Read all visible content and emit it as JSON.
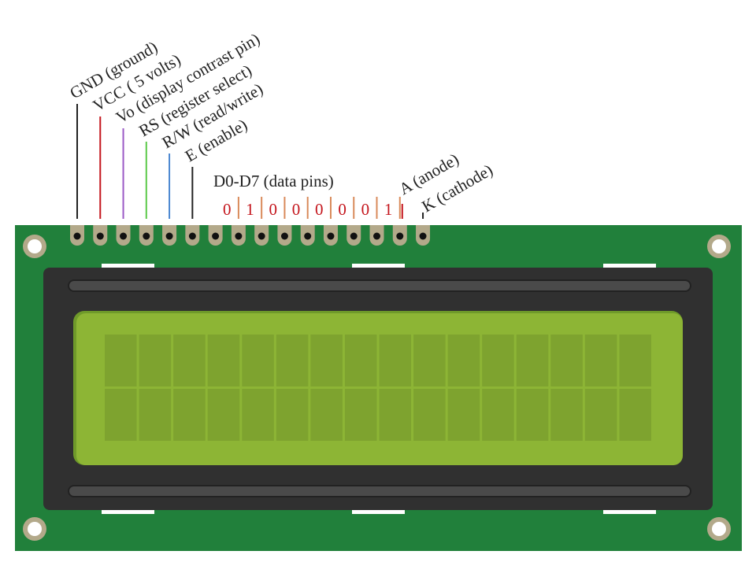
{
  "pin_labels": [
    {
      "text": "GND (ground)",
      "color": "#222222"
    },
    {
      "text": "VCC ( 5 volts)",
      "color": "#c4151c"
    },
    {
      "text": "Vo (display contrast pin)",
      "color": "#9b59c6"
    },
    {
      "text": "RS (register select)",
      "color": "#5cc94a"
    },
    {
      "text": "R/W (read/write)",
      "color": "#4a86d0"
    },
    {
      "text": "E (enable)",
      "color": "#222222"
    }
  ],
  "data_pins": {
    "label": "D0-D7 (data pins)",
    "bits": [
      "0",
      "1",
      "0",
      "0",
      "0",
      "0",
      "0",
      "1"
    ],
    "bit_color": "#c4151c",
    "separator_color": "#d98a5a"
  },
  "backlight": {
    "anode_label": "A (anode)",
    "anode_color": "#c4151c",
    "cathode_label": "K (cathode)",
    "cathode_color": "#222222"
  },
  "board": {
    "pcb_color": "#21803b",
    "pad_color": "#b3a98a",
    "bezel_color": "#303030",
    "screen_color": "#8db535",
    "cell_color": "#7ea32f",
    "columns": 16,
    "rows": 2,
    "pin_count": 16
  }
}
